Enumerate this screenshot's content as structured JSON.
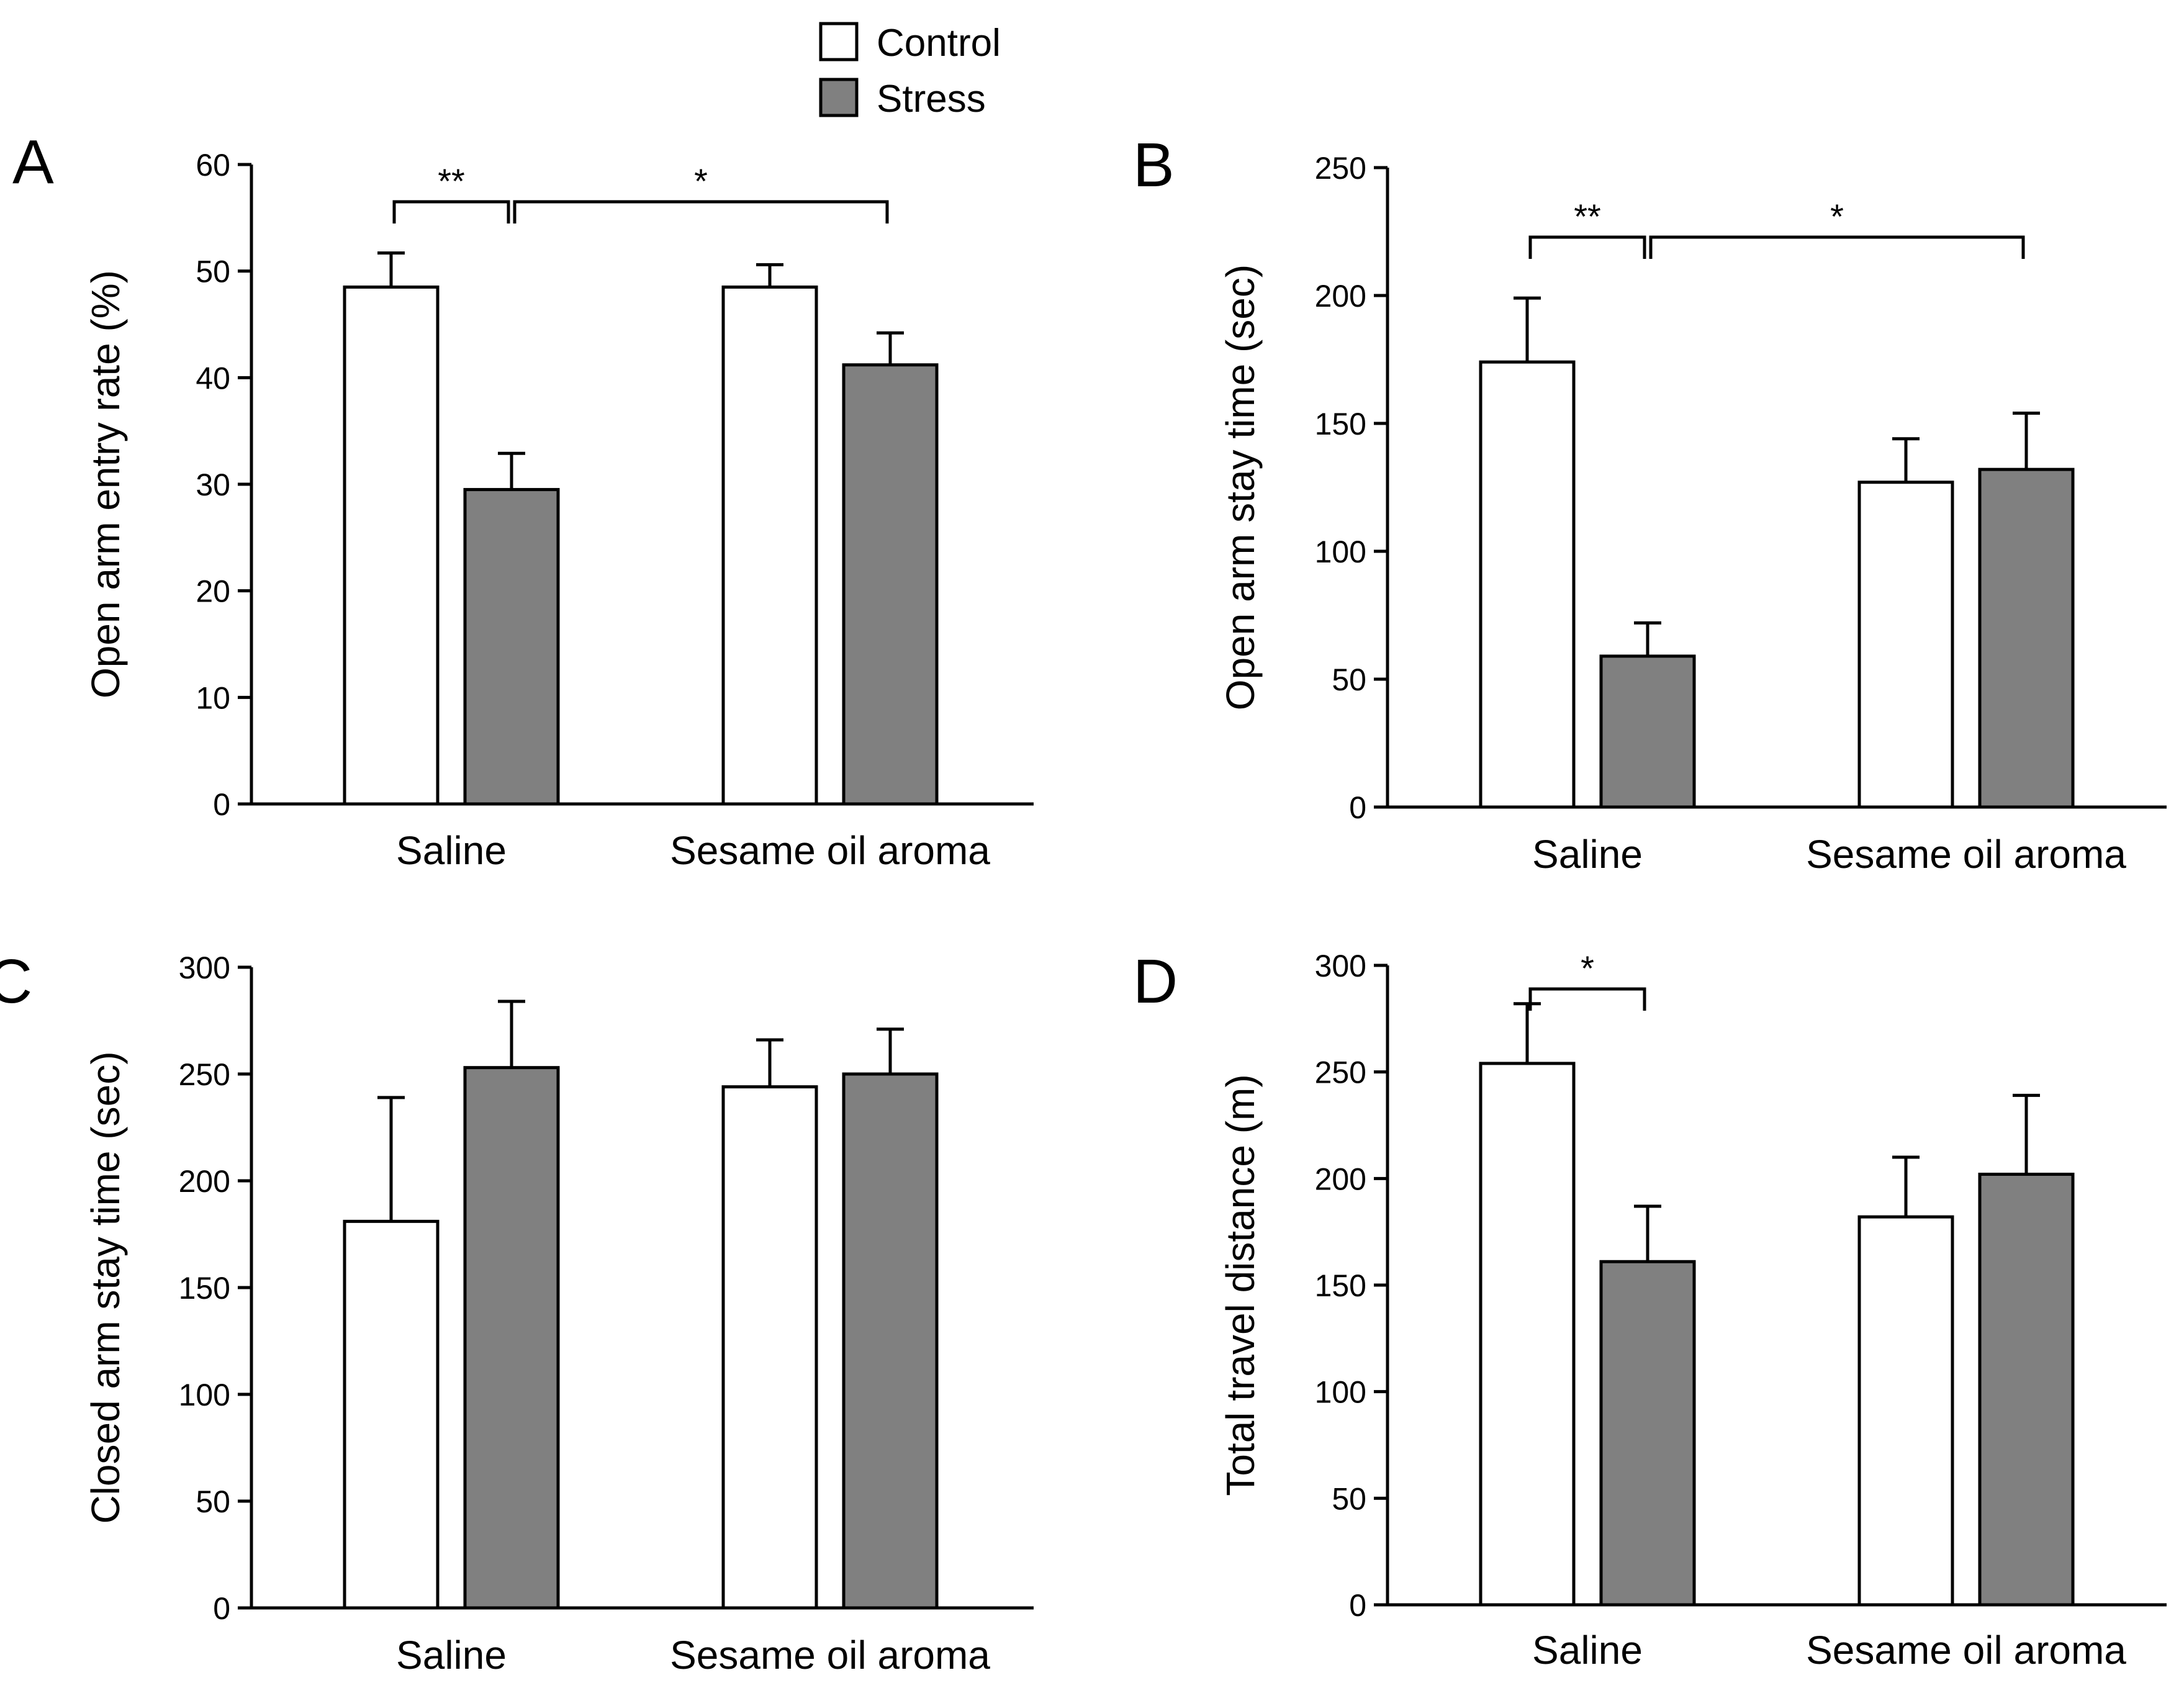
{
  "legend": {
    "placement": "top-center",
    "items": [
      {
        "label": "Control",
        "color": "#ffffff"
      },
      {
        "label": "Stress",
        "color": "#808080"
      }
    ]
  },
  "chart_data": [
    {
      "panel": "A",
      "type": "bar",
      "title": "",
      "ylabel": "Open arm entry rate (%)",
      "xlabel": "",
      "categories": [
        "Saline",
        "Sesame oil aroma"
      ],
      "series": [
        {
          "name": "Control",
          "color": "#ffffff",
          "values": [
            48.5,
            48.5
          ],
          "errors": [
            3.2,
            2.1
          ]
        },
        {
          "name": "Stress",
          "color": "#808080",
          "values": [
            29.5,
            41.2
          ],
          "errors": [
            3.4,
            3.0
          ]
        }
      ],
      "ylim": [
        0,
        60
      ],
      "yticks": [
        0,
        10,
        20,
        30,
        40,
        50,
        60
      ],
      "grid": false,
      "significance": [
        {
          "from": [
            0,
            0
          ],
          "to": [
            0,
            1
          ],
          "label": "**"
        },
        {
          "from": [
            0,
            1
          ],
          "to": [
            1,
            1
          ],
          "label": "*"
        }
      ]
    },
    {
      "panel": "B",
      "type": "bar",
      "title": "",
      "ylabel": "Open arm stay time (sec)",
      "xlabel": "",
      "categories": [
        "Saline",
        "Sesame oil aroma"
      ],
      "series": [
        {
          "name": "Control",
          "color": "#ffffff",
          "values": [
            174,
            127
          ],
          "errors": [
            25,
            17
          ]
        },
        {
          "name": "Stress",
          "color": "#808080",
          "values": [
            59,
            132
          ],
          "errors": [
            13,
            22
          ]
        }
      ],
      "ylim": [
        0,
        250
      ],
      "yticks": [
        0,
        50,
        100,
        150,
        200,
        250
      ],
      "grid": false,
      "significance": [
        {
          "from": [
            0,
            0
          ],
          "to": [
            0,
            1
          ],
          "label": "**"
        },
        {
          "from": [
            0,
            1
          ],
          "to": [
            1,
            1
          ],
          "label": "*"
        }
      ]
    },
    {
      "panel": "C",
      "type": "bar",
      "title": "",
      "ylabel": "Closed arm stay time (sec)",
      "xlabel": "",
      "categories": [
        "Saline",
        "Sesame oil aroma"
      ],
      "series": [
        {
          "name": "Control",
          "color": "#ffffff",
          "values": [
            181,
            244
          ],
          "errors": [
            58,
            22
          ]
        },
        {
          "name": "Stress",
          "color": "#808080",
          "values": [
            253,
            250
          ],
          "errors": [
            31,
            21
          ]
        }
      ],
      "ylim": [
        0,
        300
      ],
      "yticks": [
        0,
        50,
        100,
        150,
        200,
        250,
        300
      ],
      "grid": false,
      "significance": []
    },
    {
      "panel": "D",
      "type": "bar",
      "title": "",
      "ylabel": "Total travel distance (m)",
      "xlabel": "",
      "categories": [
        "Saline",
        "Sesame oil aroma"
      ],
      "series": [
        {
          "name": "Control",
          "color": "#ffffff",
          "values": [
            254,
            182
          ],
          "errors": [
            28,
            28
          ]
        },
        {
          "name": "Stress",
          "color": "#808080",
          "values": [
            161,
            202
          ],
          "errors": [
            26,
            37
          ]
        }
      ],
      "ylim": [
        0,
        300
      ],
      "yticks": [
        0,
        50,
        100,
        150,
        200,
        250,
        300
      ],
      "grid": false,
      "significance": [
        {
          "from": [
            0,
            0
          ],
          "to": [
            0,
            1
          ],
          "label": "*"
        }
      ]
    }
  ]
}
